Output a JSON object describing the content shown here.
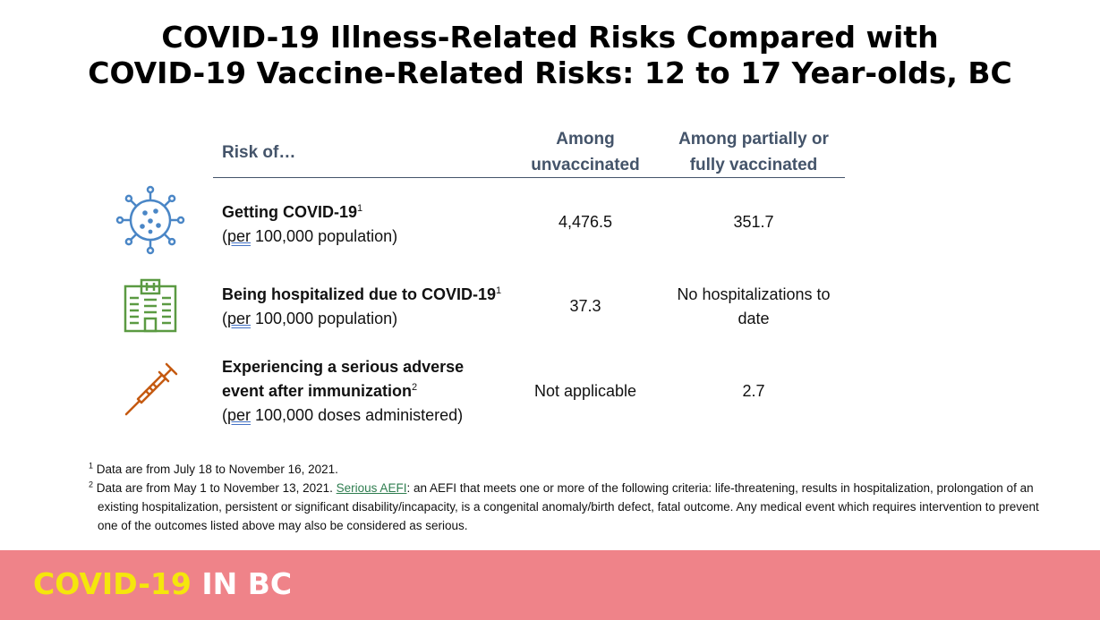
{
  "title": {
    "line1": "COVID-19 Illness-Related Risks Compared with",
    "line2": "COVID-19 Vaccine-Related Risks: 12 to 17 Year-olds, BC"
  },
  "table": {
    "headers": {
      "risk": "Risk of…",
      "unvax_l1": "Among",
      "unvax_l2": "unvaccinated",
      "vax_l1": "Among partially or",
      "vax_l2": "fully vaccinated"
    },
    "rows": [
      {
        "icon": "virus-icon",
        "label_bold": "Getting COVID-19",
        "sup": "1",
        "per": "per",
        "rest": " 100,000 population)",
        "unvax": "4,476.5",
        "vax": "351.7"
      },
      {
        "icon": "hospital-icon",
        "label_bold": "Being hospitalized due to COVID-19",
        "sup": "1",
        "per": "per",
        "rest": " 100,000 population)",
        "unvax": "37.3",
        "vax_l1": "No hospitalizations to",
        "vax_l2": "date"
      },
      {
        "icon": "syringe-icon",
        "label_bold_l1": "Experiencing a serious adverse",
        "label_bold_l2": "event after immunization",
        "sup": "2",
        "per": "per",
        "rest": " 100,000 doses administered)",
        "unvax": "Not applicable",
        "vax": "2.7"
      }
    ]
  },
  "footnotes": {
    "n1_mark": "1",
    "n1": " Data are from July 18 to November 16, 2021.",
    "n2_mark": "2",
    "n2_pre": " Data are from May 1 to November 13, 2021. ",
    "n2_link": "Serious AEFI",
    "n2_post": ": an AEFI that meets one or more of the following criteria: life-threatening, results in hospitalization, prolongation of an existing hospitalization, persistent or significant disability/incapacity, is a congenital anomaly/birth defect, fatal outcome. Any medical event which requires intervention to prevent one of the outcomes listed above may also be considered as serious."
  },
  "footer": {
    "brand_part1": "COVID-19",
    "brand_part2": "IN BC"
  },
  "colors": {
    "header_text": "#44546a",
    "virus": "#4a86c6",
    "hospital": "#5b9a42",
    "syringe": "#c55a11",
    "footer_bg": "#ef8389",
    "brand_yellow": "#f5e60c",
    "link": "#2e7d4f"
  }
}
